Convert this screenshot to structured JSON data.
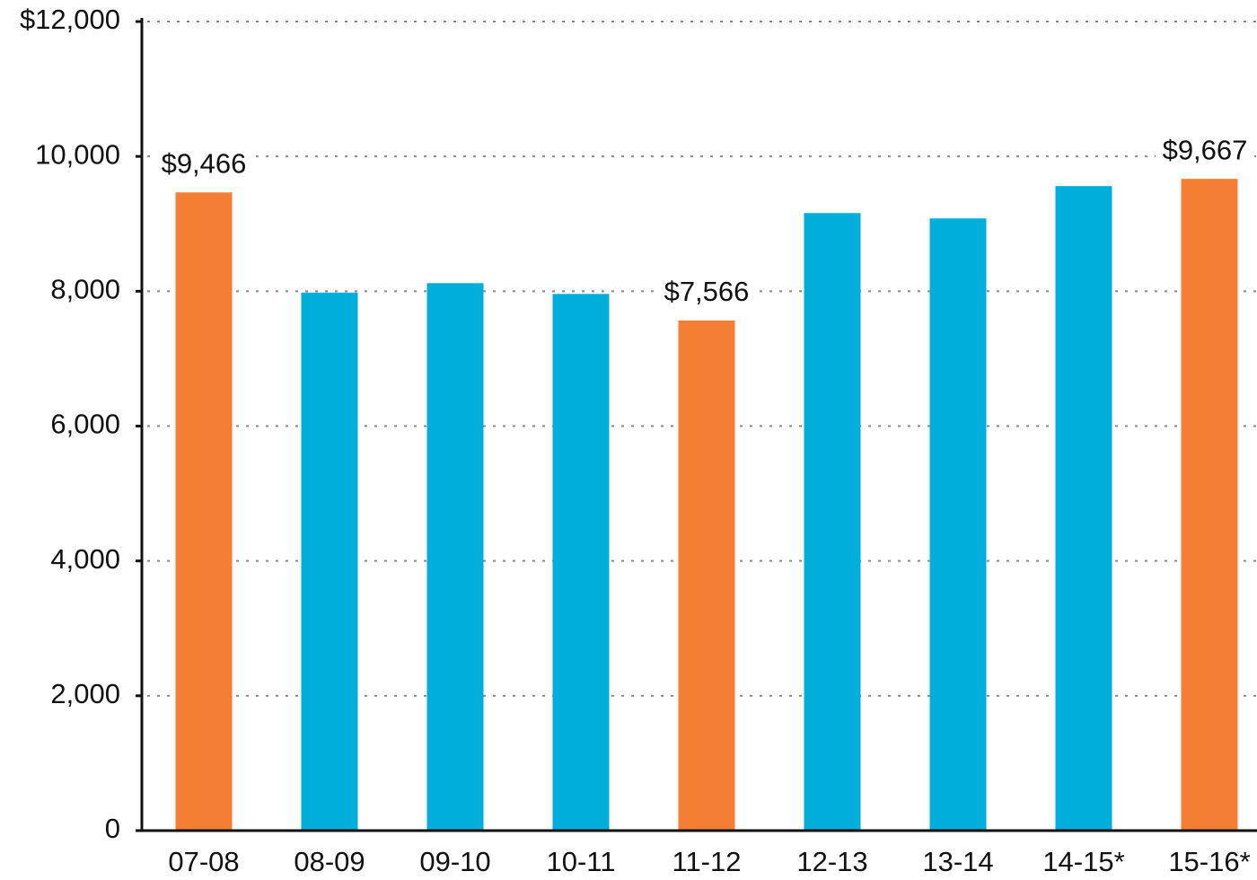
{
  "chart_data": {
    "type": "bar",
    "categories": [
      "07-08",
      "08-09",
      "09-10",
      "10-11",
      "11-12",
      "12-13",
      "13-14",
      "14-15*",
      "15-16*"
    ],
    "values": [
      9466,
      7980,
      8120,
      7960,
      7566,
      9160,
      9080,
      9560,
      9667
    ],
    "value_labels": [
      "$9,466",
      null,
      null,
      null,
      "$7,566",
      null,
      null,
      null,
      "$9,667"
    ],
    "colors": [
      "#f47f34",
      "#00aedb",
      "#00aedb",
      "#00aedb",
      "#f47f34",
      "#00aedb",
      "#00aedb",
      "#00aedb",
      "#f47f34"
    ],
    "ylim": [
      0,
      12000
    ],
    "yticks": [
      0,
      {
        "value": 2000,
        "label": "2,000"
      },
      {
        "value": 4000,
        "label": "4,000"
      },
      {
        "value": 6000,
        "label": "6,000"
      },
      {
        "value": 8000,
        "label": "8,000"
      },
      {
        "value": 10000,
        "label": "10,000"
      },
      {
        "value": 12000,
        "label": "$12,000"
      }
    ],
    "grid": true
  }
}
